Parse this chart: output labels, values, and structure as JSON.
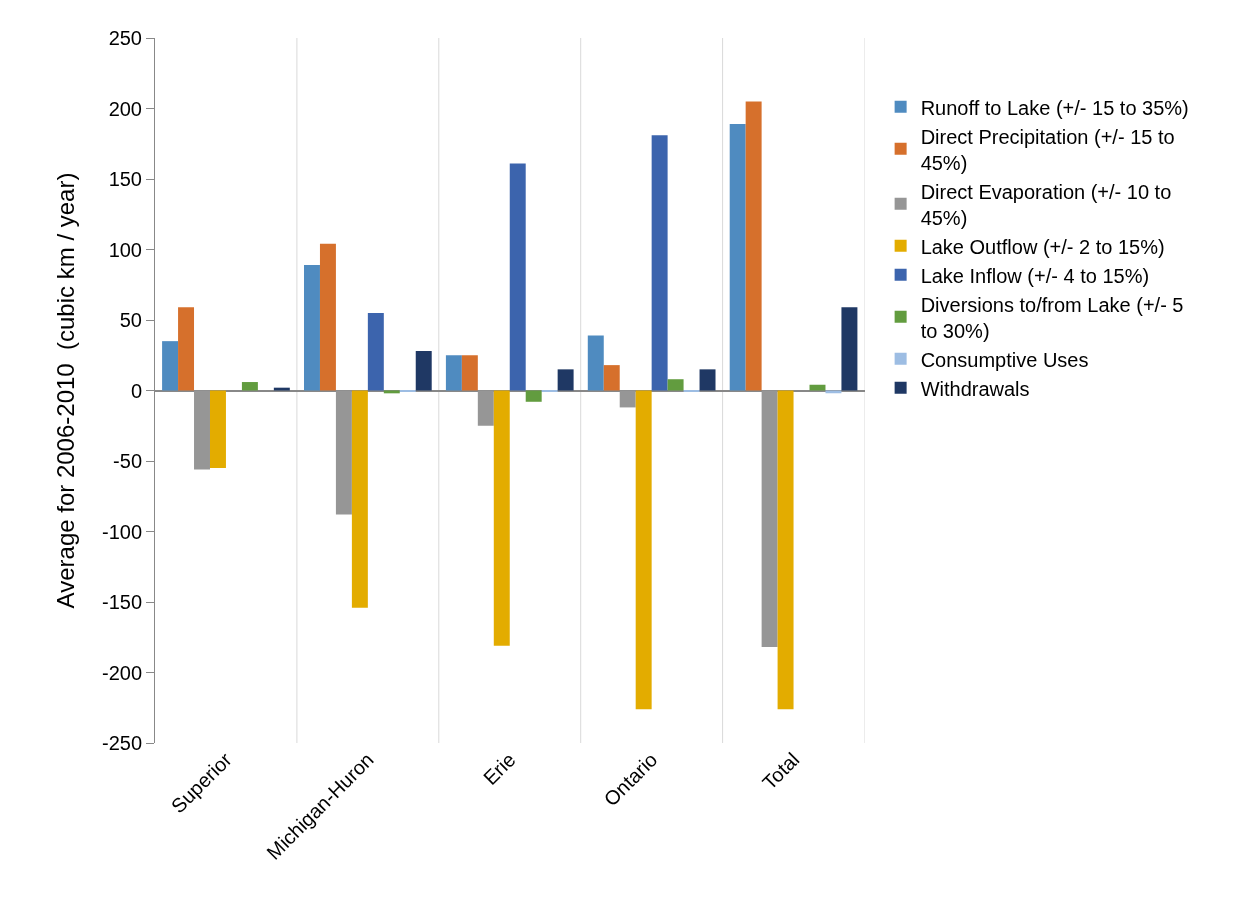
{
  "chart_data": {
    "type": "bar",
    "ylabel": "Average for 2006-2010  (cubic km / year)",
    "categories": [
      "Superior",
      "Michigan-Huron",
      "Erie",
      "Ontario",
      "Total"
    ],
    "series": [
      {
        "name": "Runoff to Lake (+/- 15 to 35%)",
        "color": "#4f8bc0",
        "values": [
          35,
          89,
          25,
          39,
          189
        ]
      },
      {
        "name": "Direct Precipitation (+/- 15 to 45%)",
        "color": "#d6702c",
        "values": [
          59,
          104,
          25,
          18,
          205
        ]
      },
      {
        "name": "Direct Evaporation (+/- 10 to 45%)",
        "color": "#969696",
        "values": [
          -56,
          -88,
          -25,
          -12,
          -182
        ]
      },
      {
        "name": "Lake Outflow (+/- 2 to 15%)",
        "color": "#e3ac00",
        "values": [
          -55,
          -154,
          -181,
          -226,
          -226
        ]
      },
      {
        "name": "Lake Inflow (+/- 4 to 15%)",
        "color": "#3c64ad",
        "values": [
          null,
          55,
          161,
          181,
          null
        ]
      },
      {
        "name": "Diversions to/from Lake (+/- 5 to 30%)",
        "color": "#629c3f",
        "values": [
          6,
          -2,
          -8,
          8,
          4
        ]
      },
      {
        "name": "Consumptive Uses",
        "color": "#9dbde3",
        "values": [
          null,
          -1,
          -1,
          -1,
          -2
        ]
      },
      {
        "name": "Withdrawals",
        "color": "#1f3864",
        "values": [
          2,
          28,
          15,
          15,
          59
        ]
      }
    ],
    "ylim": [
      -250,
      250
    ],
    "yticks": [
      -250,
      -200,
      -150,
      -100,
      -50,
      0,
      50,
      100,
      150,
      200,
      250
    ],
    "grid": "x",
    "legend": "right"
  }
}
